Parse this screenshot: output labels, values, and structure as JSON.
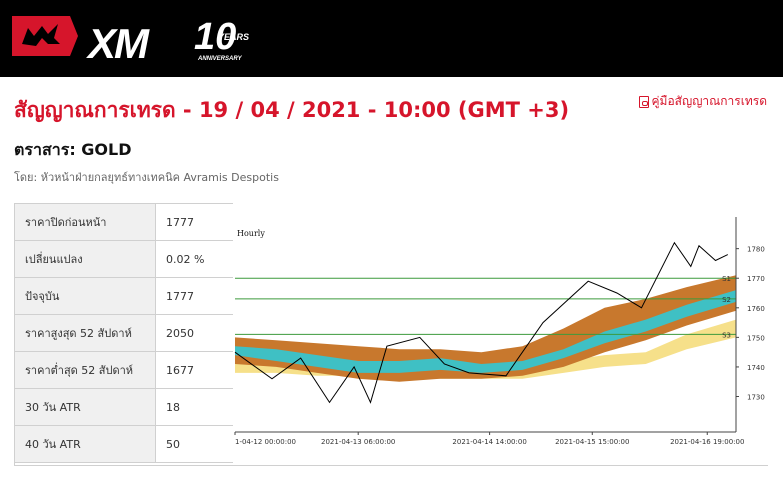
{
  "header": {
    "logo_text": "XM",
    "logo_number": "10",
    "logo_years": "YEARS",
    "logo_tagline": "ANNIVERSARY"
  },
  "page": {
    "title": "สัญญาณการเทรด - 19 / 04 / 2021 - 10:00 (GMT +3)",
    "guide_link": "คู่มือสัญญาณการเทรด",
    "instrument": "ตราสาร: GOLD",
    "author": "โดย: หัวหน้าฝ่ายกลยุทธ์ทางเทคนิค Avramis Despotis"
  },
  "stats": [
    {
      "label": "ราคาปิดก่อนหน้า",
      "value": "1777"
    },
    {
      "label": "เปลี่ยนแปลง",
      "value": "0.02 %"
    },
    {
      "label": "ปัจจุบัน",
      "value": "1777"
    },
    {
      "label": "ราคาสูงสุด 52 สัปดาห์",
      "value": "2050"
    },
    {
      "label": "ราคาต่ำสุด 52 สัปดาห์",
      "value": "1677"
    },
    {
      "label": "30 วัน ATR",
      "value": "18"
    },
    {
      "label": "40 วัน ATR",
      "value": "50"
    }
  ],
  "chart_data": {
    "type": "line",
    "title": "Hourly",
    "ylim": [
      1718,
      1788
    ],
    "yticks": [
      1730,
      1740,
      1750,
      1760,
      1770,
      1780
    ],
    "xticks": [
      {
        "label": "1-04-12 00:00:00",
        "x": 0
      },
      {
        "label": "2021-04-13 06:00:00",
        "x": 30
      },
      {
        "label": "2021-04-14 14:00:00",
        "x": 62
      },
      {
        "label": "2021-04-15 15:00:00",
        "x": 87
      },
      {
        "label": "2021-04-16 19:00:00",
        "x": 115
      }
    ],
    "xlim": [
      0,
      122
    ],
    "support_lines": [
      {
        "name": "S1",
        "value": 1770
      },
      {
        "name": "S2",
        "value": 1763
      },
      {
        "name": "S3",
        "value": 1751
      }
    ],
    "price_zigzag": {
      "x": [
        0,
        9,
        16,
        23,
        29,
        33,
        37,
        45,
        51,
        57,
        66,
        75,
        86,
        93,
        99,
        107,
        111,
        113,
        117,
        120
      ],
      "y": [
        1745,
        1736,
        1743,
        1728,
        1740,
        1728,
        1747,
        1750,
        1741,
        1738,
        1737,
        1755,
        1769,
        1765,
        1760,
        1782,
        1774,
        1781,
        1776,
        1778
      ]
    },
    "bands": {
      "x": [
        0,
        10,
        20,
        30,
        40,
        50,
        60,
        70,
        80,
        90,
        100,
        110,
        122
      ],
      "orange_upper": [
        1750,
        1749,
        1748,
        1747,
        1746,
        1746,
        1745,
        1747,
        1753,
        1760,
        1763,
        1767,
        1771
      ],
      "teal_upper": [
        1747,
        1746,
        1744,
        1742,
        1742,
        1743,
        1741,
        1742,
        1746,
        1752,
        1756,
        1761,
        1766
      ],
      "teal_lower": [
        1744,
        1742,
        1740,
        1738,
        1738,
        1739,
        1738,
        1739,
        1743,
        1748,
        1752,
        1757,
        1762
      ],
      "orange_lower": [
        1741,
        1740,
        1738,
        1736,
        1735,
        1736,
        1736,
        1737,
        1740,
        1745,
        1749,
        1754,
        1759
      ],
      "yellow_upper": [
        1743,
        1743,
        1742,
        1742,
        1742,
        1741,
        1740,
        1740,
        1742,
        1744,
        1745,
        1751,
        1756
      ],
      "yellow_lower": [
        1738,
        1738,
        1737,
        1737,
        1737,
        1736,
        1736,
        1736,
        1738,
        1740,
        1741,
        1746,
        1750
      ]
    },
    "colors": {
      "orange": "#c8782d",
      "teal": "#3fc0c4",
      "yellow": "#f6e08a",
      "support": "#3c9a3c",
      "zigzag": "#000000"
    },
    "legend": "none"
  }
}
